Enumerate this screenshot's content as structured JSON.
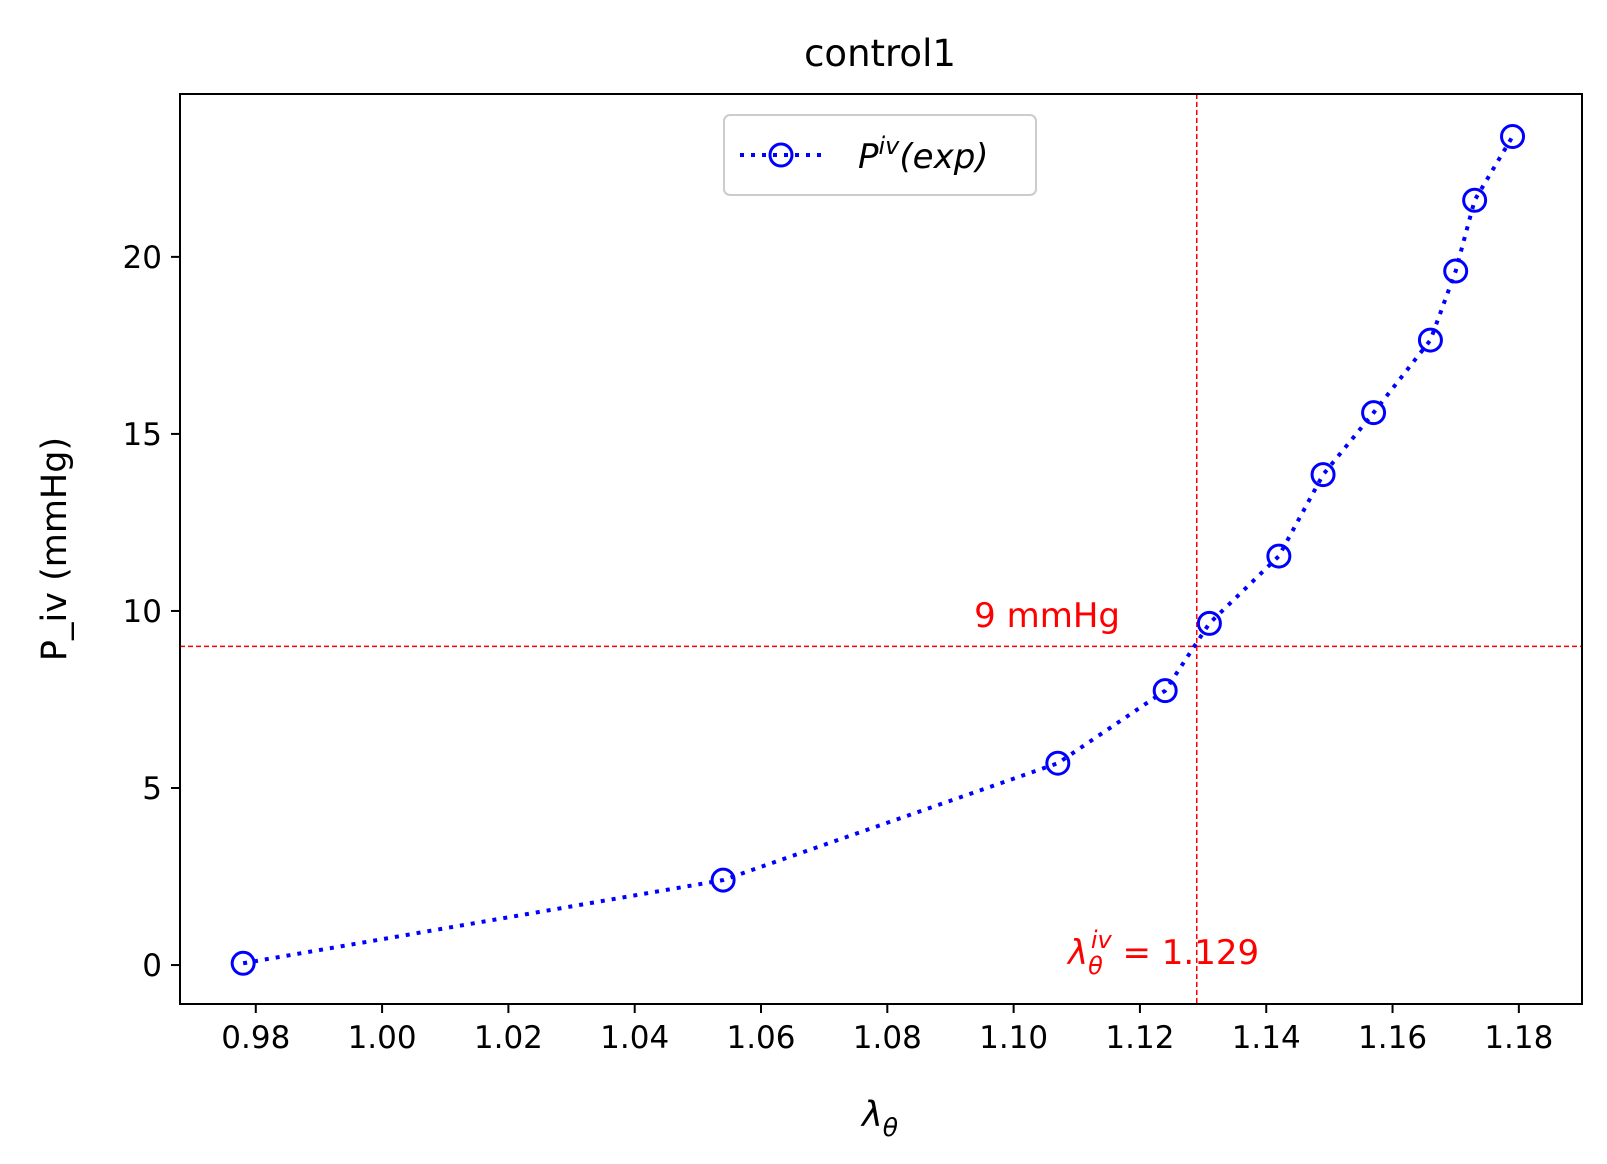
{
  "chart_data": {
    "type": "line",
    "title": "control1",
    "xlabel": "λ",
    "xlabel_sub": "θ",
    "ylabel": "P_iv (mmHg)",
    "xlim": [
      0.968,
      1.19
    ],
    "ylim": [
      -1.1,
      24.6
    ],
    "xticks": [
      0.98,
      1.0,
      1.02,
      1.04,
      1.06,
      1.08,
      1.1,
      1.12,
      1.14,
      1.16,
      1.18
    ],
    "xtick_labels": [
      "0.98",
      "1.00",
      "1.02",
      "1.04",
      "1.06",
      "1.08",
      "1.10",
      "1.12",
      "1.14",
      "1.16",
      "1.18"
    ],
    "yticks": [
      0,
      5,
      10,
      15,
      20
    ],
    "ytick_labels": [
      "0",
      "5",
      "10",
      "15",
      "20"
    ],
    "grid": false,
    "legend_position": "upper center",
    "series": [
      {
        "name": "P",
        "name_sup": "iv",
        "name_suffix": "(exp)",
        "color": "#0000ff",
        "line_style": "dotted",
        "marker": "open-circle",
        "x": [
          0.978,
          1.054,
          1.107,
          1.124,
          1.131,
          1.142,
          1.149,
          1.157,
          1.166,
          1.17,
          1.173,
          1.179
        ],
        "y": [
          0.05,
          2.4,
          5.7,
          7.75,
          9.65,
          11.55,
          13.85,
          15.6,
          17.65,
          19.6,
          21.6,
          23.4
        ]
      }
    ],
    "reference_lines": {
      "color": "#ff0000",
      "horizontal_y": 9,
      "vertical_x": 1.129
    },
    "annotations": {
      "horizontal_label": "9 mmHg",
      "vertical_label_main": "λ",
      "vertical_label_sub": "θ",
      "vertical_label_sup": "iv",
      "vertical_label_value": " = 1.129"
    }
  }
}
